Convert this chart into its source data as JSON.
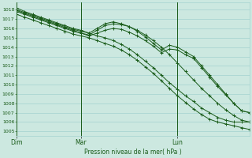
{
  "title": "Pression niveau de la mer( hPa )",
  "background_color": "#cce8e0",
  "grid_color": "#99cccc",
  "line_color": "#1a5c1a",
  "text_color": "#1a5c1a",
  "ylim": [
    1004.5,
    1018.8
  ],
  "yticks": [
    1005,
    1006,
    1007,
    1008,
    1009,
    1010,
    1011,
    1012,
    1013,
    1014,
    1015,
    1016,
    1017,
    1018
  ],
  "xtick_labels": [
    "Dim",
    "Mar",
    "Lun"
  ],
  "xtick_positions": [
    0,
    8,
    20
  ],
  "vline_positions": [
    0,
    8,
    20
  ],
  "series": [
    [
      1018.2,
      1017.8,
      1017.5,
      1017.2,
      1016.9,
      1016.6,
      1016.3,
      1016.0,
      1015.8,
      1015.5,
      1015.2,
      1015.0,
      1014.7,
      1014.3,
      1013.8,
      1013.2,
      1012.5,
      1011.8,
      1011.0,
      1010.2,
      1009.5,
      1008.8,
      1008.2,
      1007.5,
      1007.0,
      1006.5,
      1006.2,
      1006.0,
      1006.0,
      1006.0
    ],
    [
      1017.5,
      1017.2,
      1016.9,
      1016.6,
      1016.3,
      1016.0,
      1015.7,
      1015.4,
      1015.2,
      1015.0,
      1014.7,
      1014.4,
      1014.1,
      1013.7,
      1013.2,
      1012.6,
      1011.9,
      1011.2,
      1010.4,
      1009.6,
      1008.8,
      1008.1,
      1007.4,
      1006.8,
      1006.3,
      1006.0,
      1005.8,
      1005.6,
      1005.4,
      1005.2
    ],
    [
      1017.8,
      1017.5,
      1017.2,
      1016.9,
      1016.6,
      1016.3,
      1016.0,
      1015.7,
      1015.5,
      1015.3,
      1015.8,
      1016.3,
      1016.5,
      1016.4,
      1016.2,
      1015.8,
      1015.3,
      1014.7,
      1014.0,
      1013.2,
      1012.3,
      1011.4,
      1010.5,
      1009.6,
      1008.8,
      1008.0,
      1007.3,
      1006.7,
      1006.2,
      1006.0
    ],
    [
      1018.0,
      1017.7,
      1017.4,
      1017.1,
      1016.8,
      1016.5,
      1016.2,
      1015.9,
      1015.7,
      1015.5,
      1016.0,
      1016.5,
      1016.7,
      1016.5,
      1016.2,
      1015.7,
      1015.1,
      1014.4,
      1013.7,
      1014.2,
      1014.0,
      1013.5,
      1013.0,
      1012.0,
      1011.0,
      1010.0,
      1009.0,
      1008.0,
      1007.2,
      1007.0
    ],
    [
      1017.9,
      1017.6,
      1017.3,
      1017.0,
      1016.7,
      1016.4,
      1016.1,
      1015.8,
      1015.5,
      1015.2,
      1015.5,
      1015.8,
      1016.0,
      1015.9,
      1015.6,
      1015.2,
      1014.7,
      1014.1,
      1013.4,
      1013.8,
      1013.7,
      1013.2,
      1012.8,
      1011.8,
      1010.8,
      1009.8,
      1008.9,
      1008.0,
      1007.2,
      1007.0
    ]
  ]
}
